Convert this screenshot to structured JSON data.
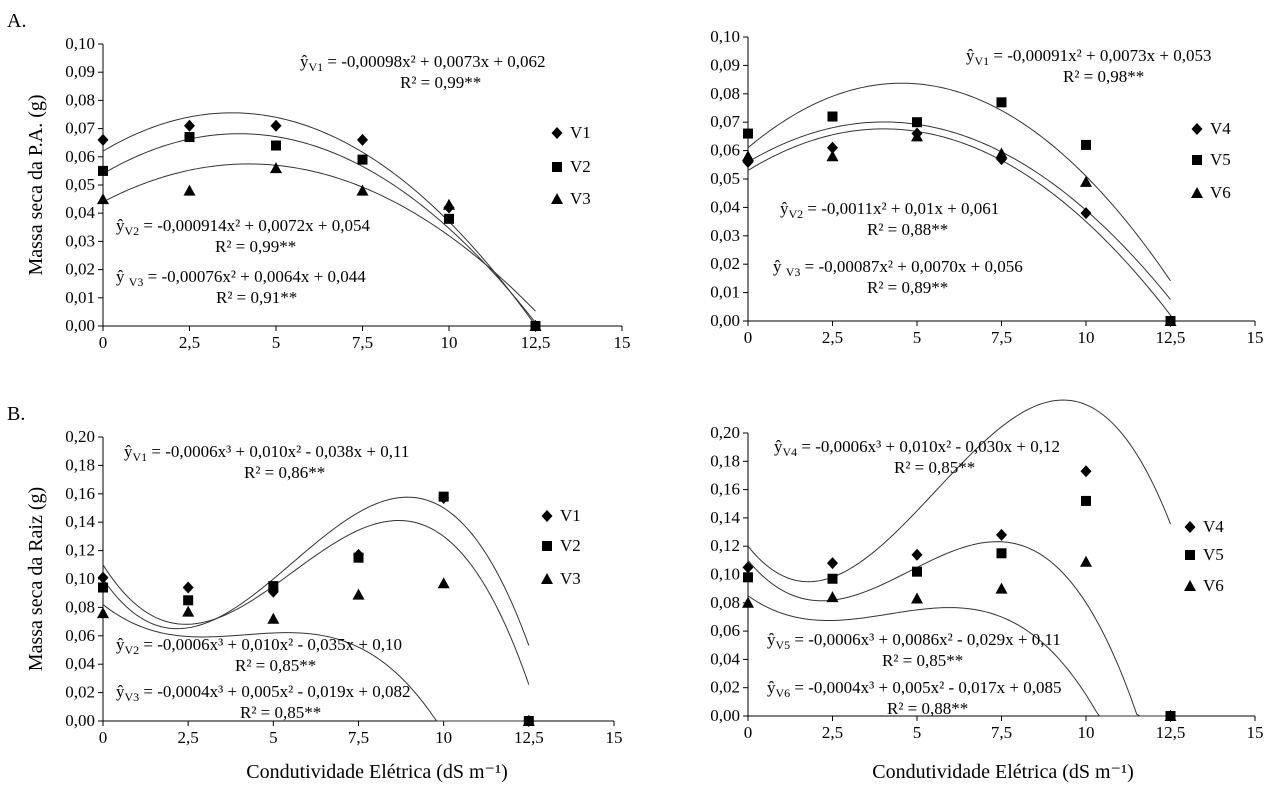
{
  "panel_labels": [
    "A.",
    "B."
  ],
  "chart_data": [
    {
      "type": "scatter",
      "panel": "A.",
      "xlabel": "",
      "ylabel": "Massa seca  da P.A. (g)",
      "xlim": [
        0,
        15
      ],
      "ylim": [
        0,
        0.1
      ],
      "xticks": [
        0,
        2.5,
        5,
        7.5,
        10,
        12.5,
        15
      ],
      "xtick_labels": [
        "0",
        "2,5",
        "5",
        "7,5",
        "10",
        "12,5",
        "15"
      ],
      "yticks": [
        0,
        0.01,
        0.02,
        0.03,
        0.04,
        0.05,
        0.06,
        0.07,
        0.08,
        0.09,
        0.1
      ],
      "ytick_labels": [
        "0,00",
        "0,01",
        "0,02",
        "0,03",
        "0,04",
        "0,05",
        "0,06",
        "0,07",
        "0,08",
        "0,09",
        "0,10"
      ],
      "grid": false,
      "legend_position": "right",
      "x": [
        0,
        2.5,
        5,
        7.5,
        10,
        12.5
      ],
      "series": [
        {
          "name": "V1",
          "marker": "diamond",
          "values": [
            0.066,
            0.071,
            0.071,
            0.066,
            0.042,
            0
          ],
          "fit": [
            -0.00098,
            0.0073,
            0.062
          ]
        },
        {
          "name": "V2",
          "marker": "square",
          "values": [
            0.055,
            0.067,
            0.064,
            0.059,
            0.038,
            0
          ],
          "fit": [
            -0.000914,
            0.0072,
            0.054
          ]
        },
        {
          "name": "V3",
          "marker": "triangle",
          "values": [
            0.045,
            0.048,
            0.056,
            0.048,
            0.043,
            0
          ],
          "fit": [
            -0.00076,
            0.0064,
            0.044
          ]
        }
      ],
      "annotations": [
        {
          "eq": "ŷ",
          "sub": "V1",
          "rest": " = -0,00098x² + 0,0073x + 0,062",
          "r2": "R² = 0,99**"
        },
        {
          "eq": "ŷ",
          "sub": "V2",
          "rest": " = -0,000914x² + 0,0072x + 0,054",
          "r2": "R² = 0,99**"
        },
        {
          "eq": "ŷ ",
          "sub": "V3",
          "rest": " = -0,00076x² + 0,0064x + 0,044",
          "r2": "R² = 0,91**"
        }
      ]
    },
    {
      "type": "scatter",
      "panel": "",
      "xlabel": "",
      "ylabel": "",
      "xlim": [
        0,
        15
      ],
      "ylim": [
        0,
        0.1
      ],
      "xticks": [
        0,
        2.5,
        5,
        7.5,
        10,
        12.5,
        15
      ],
      "xtick_labels": [
        "0",
        "2,5",
        "5",
        "7,5",
        "10",
        "12,5",
        "15"
      ],
      "yticks": [
        0,
        0.01,
        0.02,
        0.03,
        0.04,
        0.05,
        0.06,
        0.07,
        0.08,
        0.09,
        0.1
      ],
      "ytick_labels": [
        "0,00",
        "0,01",
        "0,02",
        "0,03",
        "0,04",
        "0,05",
        "0,06",
        "0,07",
        "0,08",
        "0,09",
        "0,10"
      ],
      "grid": false,
      "legend_position": "right",
      "x": [
        0,
        2.5,
        5,
        7.5,
        10,
        12.5
      ],
      "series": [
        {
          "name": "V4",
          "marker": "diamond",
          "values": [
            0.056,
            0.061,
            0.066,
            0.057,
            0.038,
            0
          ],
          "fit": [
            -0.00087,
            0.007,
            0.056
          ]
        },
        {
          "name": "V5",
          "marker": "square",
          "values": [
            0.066,
            0.072,
            0.07,
            0.077,
            0.062,
            0
          ],
          "fit": [
            -0.00091,
            0.0073,
            0.053
          ]
        },
        {
          "name": "V6",
          "marker": "triangle",
          "values": [
            0.058,
            0.058,
            0.065,
            0.059,
            0.049,
            0
          ],
          "fit": [
            -0.0011,
            0.01,
            0.061
          ]
        }
      ],
      "annotations": [
        {
          "eq": "ŷ",
          "sub": "V1",
          "rest": " = -0,00091x² + 0,0073x + 0,053",
          "r2": "R² = 0,98**"
        },
        {
          "eq": "ŷ",
          "sub": "V2",
          "rest": " = -0,0011x² + 0,01x + 0,061",
          "r2": "R² = 0,88**"
        },
        {
          "eq": "ŷ ",
          "sub": "V3",
          "rest": " = -0,00087x² + 0,0070x + 0,056",
          "r2": "R² = 0,89**"
        }
      ]
    },
    {
      "type": "scatter",
      "panel": "B.",
      "xlabel": "Condutividade Elétrica (dS m⁻¹)",
      "ylabel": "Massa seca da Raiz (g)",
      "xlim": [
        0,
        15
      ],
      "ylim": [
        0,
        0.2
      ],
      "xticks": [
        0,
        2.5,
        5,
        7.5,
        10,
        12.5,
        15
      ],
      "xtick_labels": [
        "0",
        "2,5",
        "5",
        "7,5",
        "10",
        "12,5",
        "15"
      ],
      "yticks": [
        0,
        0.02,
        0.04,
        0.06,
        0.08,
        0.1,
        0.12,
        0.14,
        0.16,
        0.18,
        0.2
      ],
      "ytick_labels": [
        "0,00",
        "0,02",
        "0,04",
        "0,06",
        "0,08",
        "0,10",
        "0,12",
        "0,14",
        "0,16",
        "0,18",
        "0,20"
      ],
      "grid": false,
      "legend_position": "right",
      "x": [
        0,
        2.5,
        5,
        7.5,
        10,
        12.5
      ],
      "series": [
        {
          "name": "V1",
          "marker": "diamond",
          "values": [
            0.101,
            0.094,
            0.091,
            0.117,
            0.157,
            0
          ],
          "fit": [
            -0.0006,
            0.01,
            -0.038,
            0.11
          ]
        },
        {
          "name": "V2",
          "marker": "square",
          "values": [
            0.094,
            0.085,
            0.095,
            0.115,
            0.158,
            0
          ],
          "fit": [
            -0.0006,
            0.01,
            -0.035,
            0.1
          ]
        },
        {
          "name": "V3",
          "marker": "triangle",
          "values": [
            0.076,
            0.077,
            0.072,
            0.089,
            0.097,
            0
          ],
          "fit": [
            -0.0004,
            0.005,
            -0.019,
            0.082
          ]
        }
      ],
      "annotations": [
        {
          "eq": "ŷ",
          "sub": "V1",
          "rest": " = -0,0006x³ + 0,010x² - 0,038x + 0,11",
          "r2": "R² = 0,86**"
        },
        {
          "eq": "ŷ",
          "sub": "V2",
          "rest": " = -0,0006x³ + 0,010x² - 0,035x + 0,10",
          "r2": "R² = 0,85**"
        },
        {
          "eq": "ŷ",
          "sub": "V3",
          "rest": " = -0,0004x³ + 0,005x² - 0,019x + 0,082",
          "r2": "R² = 0,85**"
        }
      ]
    },
    {
      "type": "scatter",
      "panel": "",
      "xlabel": "Condutividade Elétrica (dS m⁻¹)",
      "ylabel": "",
      "xlim": [
        0,
        15
      ],
      "ylim": [
        0,
        0.2
      ],
      "xticks": [
        0,
        2.5,
        5,
        7.5,
        10,
        12.5,
        15
      ],
      "xtick_labels": [
        "0",
        "2,5",
        "5",
        "7,5",
        "10",
        "12,5",
        "15"
      ],
      "yticks": [
        0,
        0.02,
        0.04,
        0.06,
        0.08,
        0.1,
        0.12,
        0.14,
        0.16,
        0.18,
        0.2
      ],
      "ytick_labels": [
        "0,00",
        "0,02",
        "0,04",
        "0,06",
        "0,08",
        "0,10",
        "0,12",
        "0,14",
        "0,16",
        "0,18",
        "0,20"
      ],
      "grid": false,
      "legend_position": "right",
      "x": [
        0,
        2.5,
        5,
        7.5,
        10,
        12.5
      ],
      "series": [
        {
          "name": "V4",
          "marker": "diamond",
          "values": [
            0.105,
            0.108,
            0.114,
            0.128,
            0.173,
            0
          ],
          "fit": [
            -0.0006,
            0.01,
            -0.03,
            0.12
          ]
        },
        {
          "name": "V5",
          "marker": "square",
          "values": [
            0.098,
            0.097,
            0.102,
            0.115,
            0.152,
            0
          ],
          "fit": [
            -0.0006,
            0.0086,
            -0.029,
            0.11
          ]
        },
        {
          "name": "V6",
          "marker": "triangle",
          "values": [
            0.08,
            0.084,
            0.083,
            0.09,
            0.109,
            0
          ],
          "fit": [
            -0.0004,
            0.005,
            -0.017,
            0.085
          ]
        }
      ],
      "annotations": [
        {
          "eq": "ŷ",
          "sub": "V4",
          "rest": " = -0,0006x³ + 0,010x² - 0,030x + 0,12",
          "r2": "R² = 0,85**"
        },
        {
          "eq": "ŷ",
          "sub": "V5",
          "rest": " = -0,0006x³ + 0,0086x² - 0,029x + 0,11",
          "r2": "R² = 0,85**"
        },
        {
          "eq": "ŷ",
          "sub": "V6",
          "rest": " = -0,0004x³ + 0,005x² - 0,017x + 0,085",
          "r2": "R² = 0,88**"
        }
      ]
    }
  ]
}
